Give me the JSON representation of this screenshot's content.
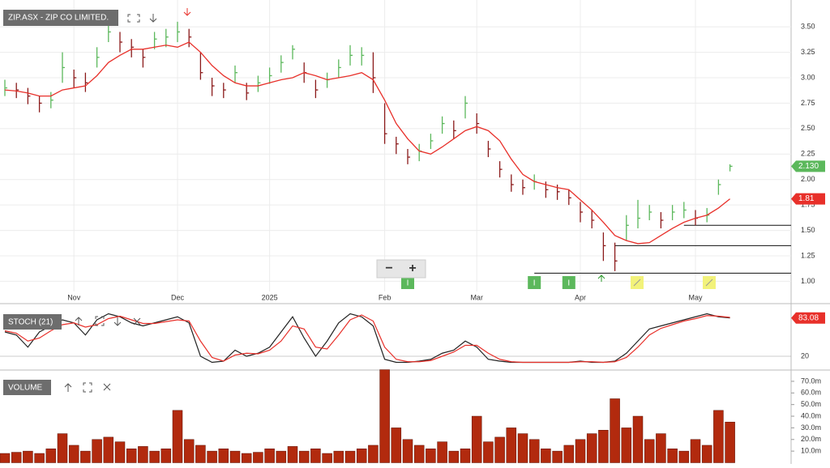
{
  "chart_data": [
    {
      "type": "ohlc",
      "title": "ZIP.ASX - ZIP CO LIMITED.",
      "categories": [
        null,
        null,
        null,
        null,
        null,
        null,
        "Nov",
        null,
        null,
        null,
        null,
        null,
        null,
        null,
        null,
        "Dec",
        null,
        null,
        null,
        null,
        null,
        null,
        null,
        "2025",
        null,
        null,
        null,
        null,
        null,
        null,
        null,
        null,
        null,
        "Feb",
        null,
        null,
        null,
        null,
        null,
        null,
        null,
        "Mar",
        null,
        null,
        null,
        null,
        null,
        null,
        null,
        null,
        "Apr",
        null,
        null,
        null,
        null,
        null,
        null,
        null,
        null,
        null,
        "May",
        null,
        null,
        null
      ],
      "high": [
        2.98,
        2.95,
        2.9,
        2.82,
        2.86,
        3.25,
        3.08,
        3.05,
        3.3,
        3.55,
        3.45,
        3.38,
        3.28,
        3.45,
        3.48,
        3.55,
        3.48,
        3.25,
        3.0,
        2.95,
        3.12,
        2.95,
        3.02,
        3.1,
        3.22,
        3.32,
        3.15,
        2.98,
        3.05,
        3.18,
        3.32,
        3.3,
        3.25,
        2.75,
        2.42,
        2.3,
        2.35,
        2.45,
        2.62,
        2.58,
        2.82,
        2.65,
        2.38,
        2.18,
        2.05,
        2.0,
        2.05,
        1.98,
        1.95,
        1.9,
        1.78,
        1.7,
        1.48,
        1.38,
        1.65,
        1.8,
        1.75,
        1.68,
        1.75,
        1.78,
        1.7,
        1.72,
        2.0,
        2.15
      ],
      "low": [
        2.82,
        2.8,
        2.74,
        2.66,
        2.7,
        2.95,
        2.9,
        2.86,
        3.1,
        3.35,
        3.25,
        3.2,
        3.1,
        3.28,
        3.3,
        3.35,
        3.3,
        2.98,
        2.82,
        2.8,
        2.95,
        2.78,
        2.86,
        2.94,
        3.05,
        3.18,
        2.95,
        2.8,
        2.9,
        3.0,
        3.12,
        3.12,
        2.85,
        2.35,
        2.25,
        2.15,
        2.18,
        2.3,
        2.45,
        2.4,
        2.6,
        2.45,
        2.22,
        2.02,
        1.88,
        1.85,
        1.9,
        1.82,
        1.8,
        1.75,
        1.58,
        1.52,
        1.2,
        1.1,
        1.4,
        1.52,
        1.6,
        1.52,
        1.6,
        1.62,
        1.55,
        1.58,
        1.85,
        2.08
      ],
      "close": [
        2.9,
        2.88,
        2.82,
        2.75,
        2.78,
        3.1,
        3.0,
        2.95,
        3.2,
        3.45,
        3.35,
        3.3,
        3.2,
        3.38,
        3.4,
        3.45,
        3.4,
        3.05,
        2.92,
        2.88,
        3.05,
        2.85,
        2.95,
        3.02,
        3.15,
        3.28,
        3.05,
        2.88,
        2.98,
        3.1,
        3.22,
        3.22,
        3.0,
        2.45,
        2.35,
        2.22,
        2.28,
        2.38,
        2.55,
        2.48,
        2.75,
        2.55,
        2.3,
        2.1,
        1.95,
        1.92,
        1.98,
        1.9,
        1.88,
        1.82,
        1.68,
        1.6,
        1.35,
        1.2,
        1.55,
        1.62,
        1.68,
        1.6,
        1.68,
        1.7,
        1.62,
        1.65,
        1.95,
        2.13
      ],
      "close_label": "2.130",
      "series": [
        {
          "color": "#e8302a",
          "values": [
            2.88,
            2.87,
            2.85,
            2.82,
            2.82,
            2.88,
            2.9,
            2.92,
            3.02,
            3.15,
            3.22,
            3.28,
            3.28,
            3.3,
            3.32,
            3.3,
            3.35,
            3.25,
            3.12,
            3.02,
            2.95,
            2.92,
            2.92,
            2.95,
            2.98,
            3.0,
            3.05,
            3.02,
            2.98,
            3.0,
            3.02,
            3.05,
            2.98,
            2.78,
            2.55,
            2.4,
            2.28,
            2.25,
            2.32,
            2.4,
            2.48,
            2.52,
            2.48,
            2.38,
            2.2,
            2.05,
            1.98,
            1.95,
            1.92,
            1.9,
            1.8,
            1.7,
            1.58,
            1.45,
            1.4,
            1.37,
            1.38,
            1.45,
            1.52,
            1.58,
            1.62,
            1.65,
            1.72,
            1.81
          ],
          "last_label": "1.81"
        }
      ],
      "up_color": "#5cb85c",
      "down_color": "#8b1a1a",
      "ylim": [
        0.9,
        3.7
      ],
      "yticks": [
        {
          "value": 1,
          "label": "1.00"
        },
        {
          "value": 1.25,
          "label": "1.25"
        },
        {
          "value": 1.5,
          "label": "1.50"
        },
        {
          "value": 1.75,
          "label": "1.75"
        },
        {
          "value": 2,
          "label": "2.00"
        },
        {
          "value": 2.25,
          "label": "2.25"
        },
        {
          "value": 2.5,
          "label": "2.50"
        },
        {
          "value": 2.75,
          "label": "2.75"
        },
        {
          "value": 3,
          "label": "3.00"
        },
        {
          "value": 3.25,
          "label": "3.25"
        },
        {
          "value": 3.5,
          "label": "3.50"
        }
      ],
      "support_levels": [
        {
          "value": 1.55,
          "start": 59
        },
        {
          "value": 1.35,
          "start": 53
        },
        {
          "value": 1.08,
          "start": 46
        }
      ],
      "markers": [
        {
          "label": "I",
          "index": 35
        },
        {
          "label": "I",
          "index": 46
        },
        {
          "label": "I",
          "index": 49
        }
      ],
      "zoom_out": "−",
      "zoom_in": "+"
    },
    {
      "type": "line",
      "title": "STOCH (21)",
      "series": [
        {
          "color": "#222222",
          "values": [
            60,
            55,
            35,
            60,
            70,
            80,
            75,
            55,
            80,
            90,
            85,
            75,
            70,
            75,
            80,
            85,
            75,
            20,
            10,
            12,
            30,
            20,
            25,
            35,
            60,
            85,
            50,
            20,
            45,
            75,
            90,
            85,
            70,
            15,
            10,
            10,
            12,
            15,
            25,
            30,
            45,
            35,
            15,
            12,
            10,
            10,
            10,
            10,
            10,
            10,
            12,
            10,
            10,
            12,
            25,
            45,
            65,
            70,
            75,
            80,
            85,
            90,
            85,
            83.08
          ],
          "last_label": "83.08"
        },
        {
          "color": "#e8302a",
          "values": [
            62,
            58,
            45,
            50,
            62,
            72,
            75,
            68,
            72,
            82,
            86,
            80,
            74,
            74,
            77,
            80,
            78,
            45,
            18,
            12,
            22,
            25,
            24,
            30,
            45,
            70,
            65,
            35,
            32,
            55,
            80,
            88,
            78,
            35,
            15,
            11,
            11,
            13,
            20,
            27,
            38,
            38,
            25,
            15,
            11,
            10,
            10,
            10,
            10,
            10,
            11,
            11,
            10,
            11,
            18,
            35,
            55,
            66,
            72,
            78,
            82,
            87,
            86,
            84
          ]
        }
      ],
      "ylim": [
        0,
        100
      ],
      "yticks": [
        20
      ]
    },
    {
      "type": "bar",
      "title": "VOLUME",
      "color": "#b22a0e",
      "values": [
        8,
        9,
        10,
        8,
        12,
        25,
        15,
        10,
        20,
        22,
        18,
        12,
        14,
        10,
        12,
        45,
        20,
        15,
        10,
        12,
        10,
        8,
        9,
        12,
        10,
        14,
        10,
        12,
        8,
        10,
        10,
        12,
        15,
        80,
        30,
        20,
        15,
        12,
        18,
        10,
        12,
        40,
        18,
        22,
        30,
        25,
        20,
        12,
        10,
        15,
        20,
        25,
        28,
        55,
        30,
        40,
        20,
        25,
        12,
        10,
        20,
        15,
        45,
        35
      ],
      "ylim": [
        0,
        79
      ],
      "yticks": [
        {
          "value": 10,
          "label": "10.0m"
        },
        {
          "value": 20,
          "label": "20.0m"
        },
        {
          "value": 30,
          "label": "30.0m"
        },
        {
          "value": 40,
          "label": "40.0m"
        },
        {
          "value": 50,
          "label": "50.0m"
        },
        {
          "value": 60,
          "label": "60.0m"
        },
        {
          "value": 70,
          "label": "70.0m"
        }
      ]
    }
  ]
}
